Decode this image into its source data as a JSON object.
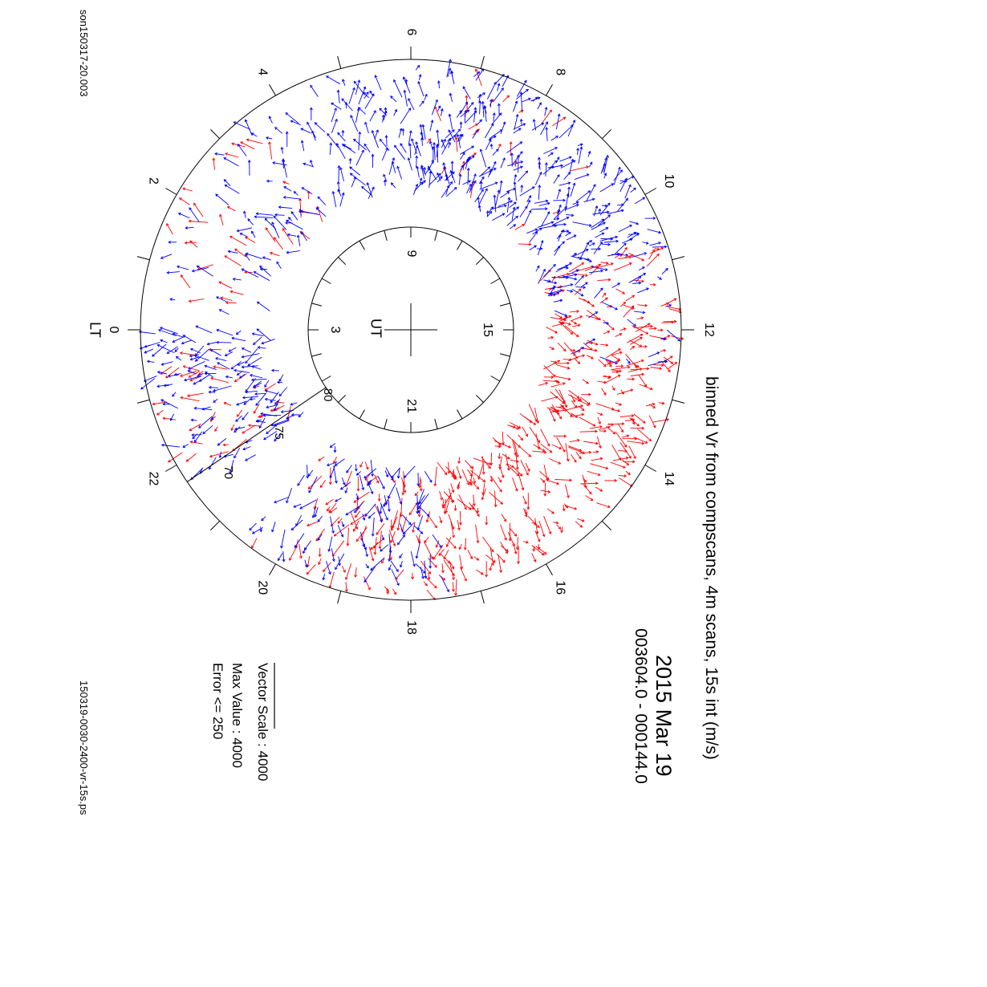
{
  "file_labels": {
    "top_left": "son150317-20.003",
    "bottom_left": "150319-0030-2400-vr-15s.ps"
  },
  "header": {
    "title": "binned Vr from compscans, 4m scans, 15s int (m/s)",
    "date": "2015 Mar 19",
    "time_range": "003604.0 - 000144.0"
  },
  "legend": {
    "vector_scale": "Vector Scale : 4000",
    "max_value": "Max Value : 4000",
    "error": "Error <= 250"
  },
  "colors": {
    "positive_vr": "#ff0000",
    "negative_vr": "#0000ff",
    "axes": "#000000"
  },
  "chart_data": {
    "type": "polar-vector-plot",
    "outer_axis_label": "LT",
    "outer_hour_labels": [
      "0",
      "2",
      "4",
      "6",
      "8",
      "10",
      "12",
      "14",
      "16",
      "18",
      "20",
      "22"
    ],
    "inner_axis_label": "UT",
    "inner_hour_labels": [
      "3",
      "9",
      "15",
      "21"
    ],
    "latitude_labels": [
      "70",
      "75",
      "80"
    ],
    "vector_scale": 4000,
    "max_value": 4000,
    "error_max": 250,
    "series": [
      {
        "color": "red",
        "sectors": [
          {
            "lt_from": 10.6,
            "lt_to": 12.4,
            "density": 0.8
          },
          {
            "lt_from": 12.4,
            "lt_to": 17.4,
            "density": 1.0
          },
          {
            "lt_from": 17.4,
            "lt_to": 20.5,
            "density": 0.55
          },
          {
            "lt_from": 21.4,
            "lt_to": 23.6,
            "density": 0.3
          },
          {
            "lt_from": 0.5,
            "lt_to": 3.6,
            "density": 0.2
          },
          {
            "lt_from": 6.0,
            "lt_to": 9.5,
            "density": 0.12
          }
        ]
      },
      {
        "color": "blue",
        "sectors": [
          {
            "lt_from": 5.0,
            "lt_to": 11.2,
            "density": 1.0
          },
          {
            "lt_from": 17.5,
            "lt_to": 20.6,
            "density": 0.6
          },
          {
            "lt_from": 21.4,
            "lt_to": 24.0,
            "density": 0.9
          },
          {
            "lt_from": 0.3,
            "lt_to": 3.2,
            "density": 0.3
          },
          {
            "lt_from": 3.2,
            "lt_to": 5.0,
            "density": 0.55
          },
          {
            "lt_from": 11.2,
            "lt_to": 12.6,
            "density": 0.25
          }
        ]
      }
    ]
  }
}
